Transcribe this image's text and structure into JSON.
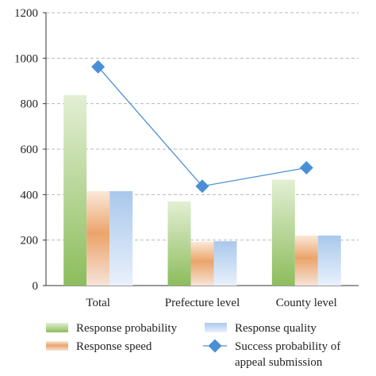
{
  "chart_data": {
    "type": "bar",
    "categories": [
      "Total",
      "Prefecture level",
      "County level"
    ],
    "series": [
      {
        "name": "Response probability",
        "kind": "bar",
        "values": [
          838,
          370,
          466
        ],
        "color": "#8fbf5f"
      },
      {
        "name": "Response speed",
        "kind": "bar",
        "values": [
          415,
          193,
          220
        ],
        "color": "#e8a062"
      },
      {
        "name": "Response quality",
        "kind": "bar",
        "values": [
          415,
          195,
          220
        ],
        "color": "#aac8ea"
      },
      {
        "name": "Success probability of appeal submission",
        "kind": "line",
        "values": [
          962,
          437,
          518
        ],
        "color": "#4a8fd6"
      }
    ],
    "ylim": [
      0,
      1200
    ],
    "yticks": [
      "0",
      "200",
      "400",
      "600",
      "800",
      "1000",
      "1200"
    ],
    "grid": "horizontal-dashed",
    "legend_position": "bottom"
  },
  "legend": {
    "response_probability": "Response probability",
    "response_speed": "Response speed",
    "response_quality": "Response quality",
    "success_line1": "Success probability of",
    "success_line2": "appeal submission"
  }
}
